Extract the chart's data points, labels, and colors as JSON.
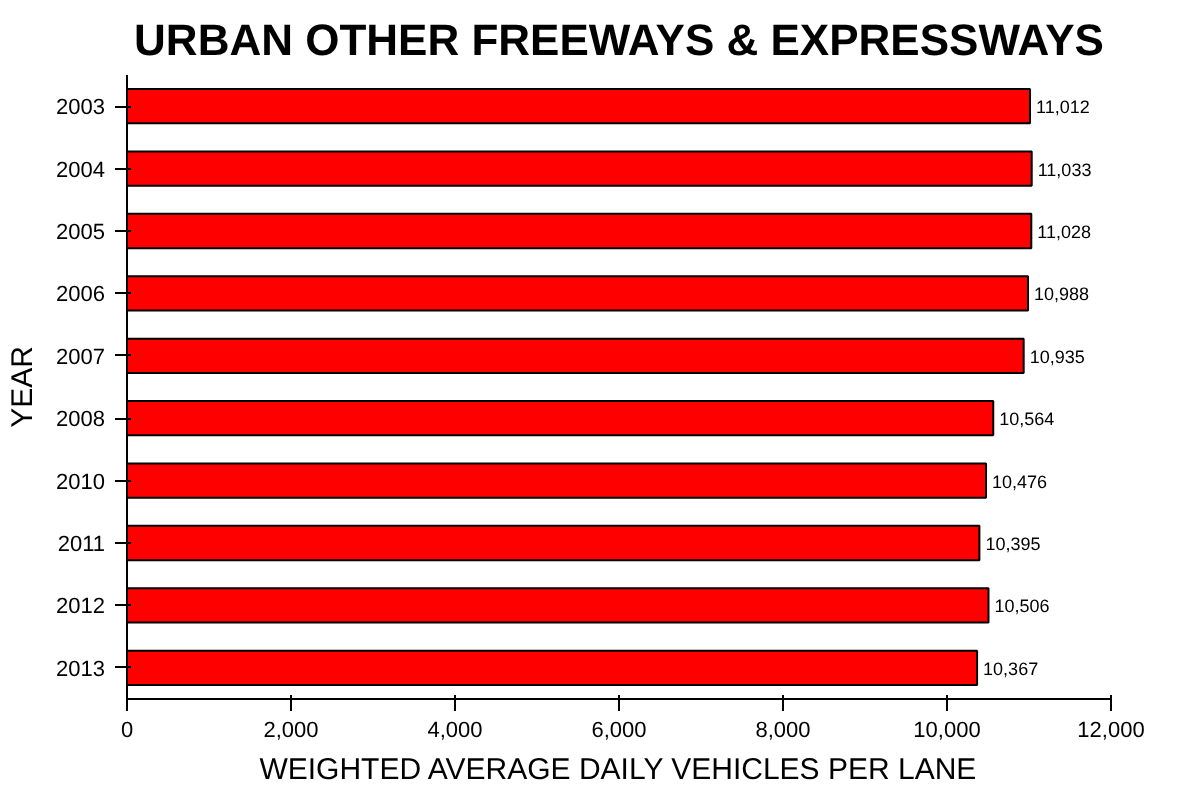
{
  "chart_data": {
    "type": "bar",
    "orientation": "horizontal",
    "title": "URBAN OTHER FREEWAYS & EXPRESSWAYS",
    "xlabel": "WEIGHTED AVERAGE DAILY VEHICLES PER LANE",
    "ylabel": "YEAR",
    "categories": [
      "2003",
      "2004",
      "2005",
      "2006",
      "2007",
      "2008",
      "2010",
      "2011",
      "2012",
      "2013"
    ],
    "values": [
      11012,
      11033,
      11028,
      10988,
      10935,
      10564,
      10476,
      10395,
      10506,
      10367
    ],
    "value_labels": [
      "11,012",
      "11,033",
      "11,028",
      "10,988",
      "10,935",
      "10,564",
      "10,476",
      "10,395",
      "10,506",
      "10,367"
    ],
    "color": "#ff0000",
    "xlim": [
      0,
      12000
    ],
    "xticks": [
      {
        "value": 0,
        "label": "0"
      },
      {
        "value": 2000,
        "label": "2,000"
      },
      {
        "value": 4000,
        "label": "4,000"
      },
      {
        "value": 6000,
        "label": "6,000"
      },
      {
        "value": 8000,
        "label": "8,000"
      },
      {
        "value": 10000,
        "label": "10,000"
      },
      {
        "value": 12000,
        "label": "12,000"
      }
    ],
    "grid": false
  }
}
